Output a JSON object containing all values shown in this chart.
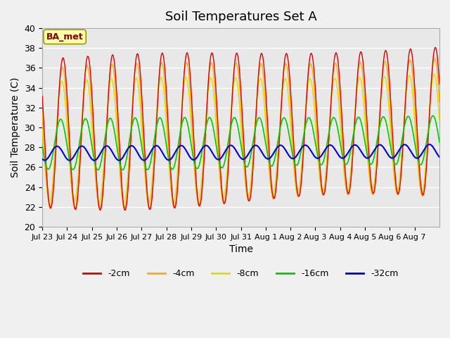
{
  "title": "Soil Temperatures Set A",
  "xlabel": "Time",
  "ylabel": "Soil Temperature (C)",
  "ylim": [
    20,
    40
  ],
  "yticks": [
    20,
    22,
    24,
    26,
    28,
    30,
    32,
    34,
    36,
    38,
    40
  ],
  "xtick_labels": [
    "Jul 23",
    "Jul 24",
    "Jul 25",
    "Jul 26",
    "Jul 27",
    "Jul 28",
    "Jul 29",
    "Jul 30",
    "Jul 31",
    "Aug 1",
    "Aug 2",
    "Aug 3",
    "Aug 4",
    "Aug 5",
    "Aug 6",
    "Aug 7"
  ],
  "annotation_label": "BA_met",
  "colors": {
    "-2cm": "#dd0000",
    "-4cm": "#ffaa00",
    "-8cm": "#dddd00",
    "-16cm": "#00cc00",
    "-32cm": "#0000dd"
  },
  "legend_labels": [
    "-2cm",
    "-4cm",
    "-8cm",
    "-16cm",
    "-32cm"
  ],
  "background_color": "#e8e8e8",
  "grid_color": "#ffffff",
  "n_days": 16,
  "samples_per_day": 48,
  "depth_2cm": {
    "mean": 30.0,
    "amplitude": 7.5,
    "phase_shift": 0.0
  },
  "depth_4cm": {
    "mean": 29.5,
    "amplitude": 7.0,
    "phase_shift": 0.15
  },
  "depth_8cm": {
    "mean": 29.0,
    "amplitude": 6.0,
    "phase_shift": 0.3
  },
  "depth_16cm": {
    "mean": 28.5,
    "amplitude": 2.5,
    "phase_shift": 0.6
  },
  "depth_32cm": {
    "mean": 27.5,
    "amplitude": 0.7,
    "phase_shift": 1.5
  }
}
